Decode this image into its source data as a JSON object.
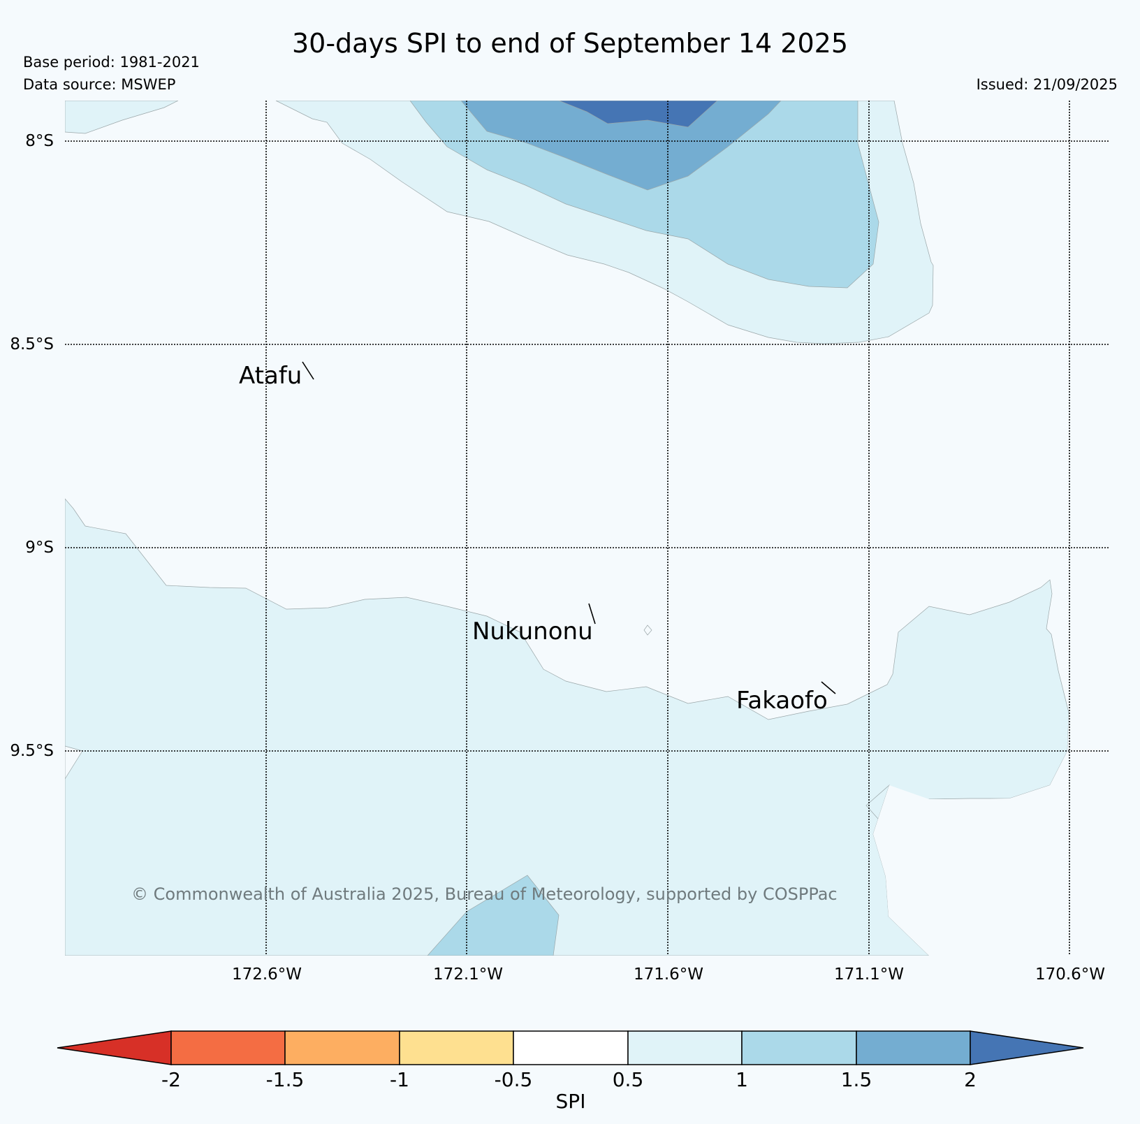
{
  "title": "30-days SPI to end of September 14 2025",
  "base_period": "Base period: 1981-2021",
  "data_source": "Data source: MSWEP",
  "issued": "Issued: 21/09/2025",
  "copyright": "© Commonwealth of Australia 2025, Bureau of Meteorology, supported by COSPPac",
  "lat_labels": [
    "8°S",
    "8.5°S",
    "9°S",
    "9.5°S"
  ],
  "lon_labels": [
    "172.6°W",
    "172.1°W",
    "171.6°W",
    "171.1°W",
    "170.6°W"
  ],
  "places": [
    {
      "name": "Atafu"
    },
    {
      "name": "Nukunonu"
    },
    {
      "name": "Fakaofo"
    }
  ],
  "colorbar": {
    "label": "SPI",
    "ticks": [
      "-2",
      "-1.5",
      "-1",
      "-0.5",
      "0.5",
      "1",
      "1.5",
      "2"
    ],
    "colors": {
      "lt_-2": "#d73027",
      "-2_-1.5": "#f46d43",
      "-1.5_-1": "#fdae61",
      "-1_-0.5": "#fee090",
      "-0.5_0.5": "#ffffff",
      "0.5_1": "#e0f3f8",
      "1_1.5": "#abd9e9",
      "1.5_2": "#74add1",
      "gt_2": "#4575b4"
    }
  },
  "colors": {
    "background": "#f5fafd",
    "spi_0_5_1": "#e0f3f8",
    "spi_1_1_5": "#abd9e9",
    "spi_1_5_2": "#74add1",
    "spi_gt_2": "#4575b4"
  }
}
